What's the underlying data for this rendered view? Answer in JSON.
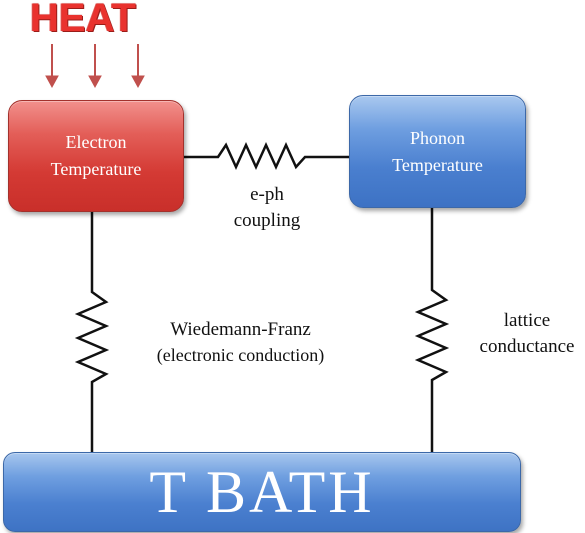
{
  "heat": {
    "label": "HEAT",
    "color": "#e9322e",
    "arrow_color": "#c0504d",
    "arrow_count": 3
  },
  "nodes": {
    "electron": {
      "label": "Electron\nTemperature",
      "color": "#d43a34"
    },
    "phonon": {
      "label": "Phonon\nTemperature",
      "color": "#4a7fcf"
    },
    "bath": {
      "label": "T BATH",
      "color": "#4b80d0"
    }
  },
  "links": {
    "eph": {
      "label": "e-ph\ncoupling"
    },
    "wiedemann_franz": {
      "label": "Wiedemann-Franz",
      "sublabel": "(electronic conduction)"
    },
    "lattice": {
      "label": "lattice\nconductance"
    }
  },
  "icons": {
    "resistor": "resistor-icon",
    "arrow": "arrow-down-icon"
  }
}
